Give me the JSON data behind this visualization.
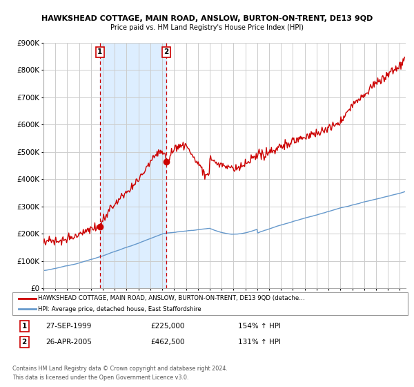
{
  "title1": "HAWKSHEAD COTTAGE, MAIN ROAD, ANSLOW, BURTON-ON-TRENT, DE13 9QD",
  "title2": "Price paid vs. HM Land Registry's House Price Index (HPI)",
  "xlim": [
    1995.0,
    2025.5
  ],
  "ylim": [
    0,
    900000
  ],
  "yticks": [
    0,
    100000,
    200000,
    300000,
    400000,
    500000,
    600000,
    700000,
    800000,
    900000
  ],
  "ytick_labels": [
    "£0",
    "£100K",
    "£200K",
    "£300K",
    "£400K",
    "£500K",
    "£600K",
    "£700K",
    "£800K",
    "£900K"
  ],
  "xticks": [
    1995,
    1996,
    1997,
    1998,
    1999,
    2000,
    2001,
    2002,
    2003,
    2004,
    2005,
    2006,
    2007,
    2008,
    2009,
    2010,
    2011,
    2012,
    2013,
    2014,
    2015,
    2016,
    2017,
    2018,
    2019,
    2020,
    2021,
    2022,
    2023,
    2024,
    2025
  ],
  "legend_line1": "HAWKSHEAD COTTAGE, MAIN ROAD, ANSLOW, BURTON-ON-TRENT, DE13 9QD (detache…",
  "legend_line2": "HPI: Average price, detached house, East Staffordshire",
  "sale1_date": "27-SEP-1999",
  "sale1_price": "£225,000",
  "sale1_hpi": "154% ↑ HPI",
  "sale1_year": 1999.75,
  "sale1_value": 225000,
  "sale2_date": "26-APR-2005",
  "sale2_price": "£462,500",
  "sale2_hpi": "131% ↑ HPI",
  "sale2_year": 2005.33,
  "sale2_value": 462500,
  "shade_start": 1999.75,
  "shade_end": 2005.33,
  "footer1": "Contains HM Land Registry data © Crown copyright and database right 2024.",
  "footer2": "This data is licensed under the Open Government Licence v3.0.",
  "red_color": "#cc0000",
  "blue_color": "#6699cc",
  "shade_color": "#ddeeff",
  "background_color": "#ffffff",
  "grid_color": "#cccccc"
}
